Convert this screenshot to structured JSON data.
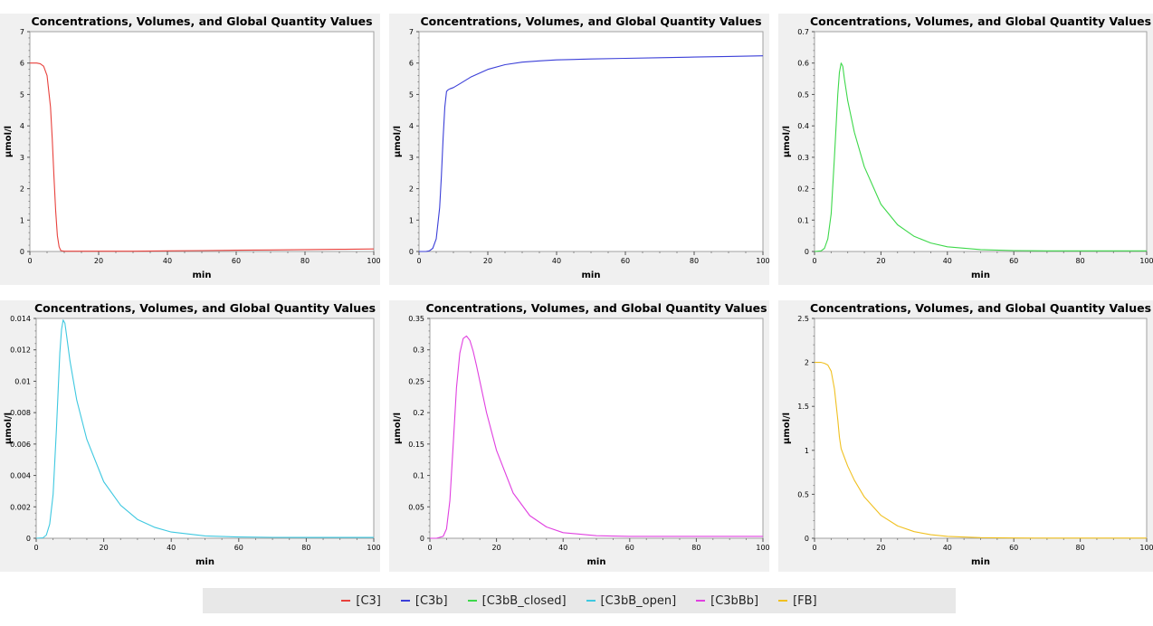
{
  "chart_data": [
    {
      "type": "line",
      "title": "Concentrations, Volumes, and Global Quantity Values",
      "xlabel": "min",
      "ylabel": "µmol/l",
      "xlim": [
        0,
        100
      ],
      "ylim": [
        0,
        7
      ],
      "xticks": [
        0,
        20,
        40,
        60,
        80,
        100
      ],
      "yticks": [
        0,
        1,
        2,
        3,
        4,
        5,
        6,
        7
      ],
      "ytick_labels": [
        "0",
        "1",
        "2",
        "3",
        "4",
        "5",
        "6",
        "7"
      ],
      "series": [
        {
          "name": "[C3]",
          "color": "#e8413c",
          "x": [
            0,
            2,
            3,
            4,
            5,
            6,
            6.5,
            7,
            7.5,
            8,
            8.5,
            9,
            10,
            15,
            20,
            30,
            40,
            50,
            60,
            70,
            80,
            90,
            100
          ],
          "y": [
            6.0,
            6.0,
            5.98,
            5.9,
            5.6,
            4.6,
            3.6,
            2.4,
            1.3,
            0.5,
            0.15,
            0.03,
            0.01,
            0.01,
            0.01,
            0.01,
            0.02,
            0.03,
            0.04,
            0.05,
            0.06,
            0.07,
            0.08
          ]
        }
      ]
    },
    {
      "type": "line",
      "title": "Concentrations, Volumes, and Global Quantity Values",
      "xlabel": "min",
      "ylabel": "µmol/l",
      "xlim": [
        0,
        100
      ],
      "ylim": [
        0,
        7
      ],
      "xticks": [
        0,
        20,
        40,
        60,
        80,
        100
      ],
      "yticks": [
        0,
        1,
        2,
        3,
        4,
        5,
        6,
        7
      ],
      "ytick_labels": [
        "0",
        "1",
        "2",
        "3",
        "4",
        "5",
        "6",
        "7"
      ],
      "series": [
        {
          "name": "[C3b]",
          "color": "#3b3fd8",
          "x": [
            0,
            2,
            3,
            4,
            5,
            6,
            6.5,
            7,
            7.5,
            8,
            8.5,
            9,
            10,
            12,
            15,
            20,
            25,
            30,
            35,
            40,
            50,
            60,
            70,
            80,
            90,
            100
          ],
          "y": [
            0,
            0,
            0.02,
            0.1,
            0.4,
            1.4,
            2.4,
            3.6,
            4.6,
            5.1,
            5.15,
            5.18,
            5.22,
            5.35,
            5.55,
            5.8,
            5.95,
            6.03,
            6.07,
            6.1,
            6.13,
            6.15,
            6.17,
            6.19,
            6.21,
            6.23
          ]
        }
      ]
    },
    {
      "type": "line",
      "title": "Concentrations, Volumes, and Global Quantity Values",
      "xlabel": "min",
      "ylabel": "µmol/l",
      "xlim": [
        0,
        100
      ],
      "ylim": [
        0,
        0.7
      ],
      "xticks": [
        0,
        20,
        40,
        60,
        80,
        100
      ],
      "yticks": [
        0,
        0.1,
        0.2,
        0.3,
        0.4,
        0.5,
        0.6,
        0.7
      ],
      "ytick_labels": [
        "0",
        "0.1",
        "0.2",
        "0.3",
        "0.4",
        "0.5",
        "0.6",
        "0.7"
      ],
      "series": [
        {
          "name": "[C3bB_closed]",
          "color": "#3dd84a",
          "x": [
            0,
            2,
            3,
            4,
            5,
            6,
            7,
            7.5,
            8,
            8.5,
            9,
            10,
            12,
            15,
            20,
            25,
            30,
            35,
            40,
            50,
            60,
            70,
            80,
            90,
            100
          ],
          "y": [
            0,
            0.002,
            0.01,
            0.04,
            0.12,
            0.3,
            0.5,
            0.57,
            0.6,
            0.59,
            0.55,
            0.48,
            0.38,
            0.27,
            0.15,
            0.085,
            0.048,
            0.027,
            0.015,
            0.006,
            0.003,
            0.002,
            0.002,
            0.002,
            0.002
          ]
        }
      ]
    },
    {
      "type": "line",
      "title": "Concentrations, Volumes, and Global Quantity Values",
      "xlabel": "min",
      "ylabel": "µmol/l",
      "xlim": [
        0,
        100
      ],
      "ylim": [
        0,
        0.014
      ],
      "xticks": [
        0,
        20,
        40,
        60,
        80,
        100
      ],
      "yticks": [
        0,
        0.002,
        0.004,
        0.006,
        0.008,
        0.01,
        0.012,
        0.014
      ],
      "ytick_labels": [
        "0",
        "0.002",
        "0.004",
        "0.006",
        "0.008",
        "0.01",
        "0.012",
        "0.014"
      ],
      "series": [
        {
          "name": "[C3bB_open]",
          "color": "#3ec8e0",
          "x": [
            0,
            2,
            3,
            4,
            5,
            6,
            7,
            7.5,
            8,
            8.5,
            9,
            10,
            12,
            15,
            20,
            25,
            30,
            35,
            40,
            50,
            60,
            70,
            80,
            90,
            100
          ],
          "y": [
            0,
            3e-05,
            0.0002,
            0.0009,
            0.0028,
            0.007,
            0.0118,
            0.0133,
            0.0139,
            0.0137,
            0.0129,
            0.0113,
            0.0088,
            0.0063,
            0.0036,
            0.0021,
            0.0012,
            0.0007,
            0.0004,
            0.00015,
            8e-05,
            6e-05,
            5e-05,
            5e-05,
            5e-05
          ]
        }
      ]
    },
    {
      "type": "line",
      "title": "Concentrations, Volumes, and Global Quantity Values",
      "xlabel": "min",
      "ylabel": "µmol/l",
      "xlim": [
        0,
        100
      ],
      "ylim": [
        0,
        0.35
      ],
      "xticks": [
        0,
        20,
        40,
        60,
        80,
        100
      ],
      "yticks": [
        0,
        0.05,
        0.1,
        0.15,
        0.2,
        0.25,
        0.3,
        0.35
      ],
      "ytick_labels": [
        "0",
        "0.05",
        "0.1",
        "0.15",
        "0.2",
        "0.25",
        "0.3",
        "0.35"
      ],
      "series": [
        {
          "name": "[C3bBb]",
          "color": "#e040e0",
          "x": [
            0,
            2,
            4,
            5,
            6,
            7,
            8,
            9,
            10,
            11,
            12,
            13,
            14,
            15,
            17,
            20,
            25,
            30,
            35,
            40,
            50,
            60,
            70,
            80,
            90,
            100
          ],
          "y": [
            0,
            0,
            0.003,
            0.015,
            0.06,
            0.15,
            0.24,
            0.295,
            0.318,
            0.322,
            0.315,
            0.298,
            0.275,
            0.25,
            0.2,
            0.14,
            0.072,
            0.036,
            0.018,
            0.009,
            0.004,
            0.003,
            0.003,
            0.003,
            0.003,
            0.003
          ]
        }
      ]
    },
    {
      "type": "line",
      "title": "Concentrations, Volumes, and Global Quantity Values",
      "xlabel": "min",
      "ylabel": "µmol/l",
      "xlim": [
        0,
        100
      ],
      "ylim": [
        0,
        2.5
      ],
      "xticks": [
        0,
        20,
        40,
        60,
        80,
        100
      ],
      "yticks": [
        0,
        0.5,
        1,
        1.5,
        2,
        2.5
      ],
      "ytick_labels": [
        "0",
        "0.5",
        "1",
        "1.5",
        "2",
        "2.5"
      ],
      "series": [
        {
          "name": "[FB]",
          "color": "#f0c020",
          "x": [
            0,
            2,
            3,
            4,
            5,
            6,
            7,
            7.5,
            8,
            9,
            10,
            12,
            15,
            20,
            25,
            30,
            35,
            40,
            50,
            60,
            70,
            80,
            90,
            100
          ],
          "y": [
            2.0,
            2.0,
            1.99,
            1.97,
            1.9,
            1.7,
            1.35,
            1.15,
            1.02,
            0.92,
            0.82,
            0.66,
            0.47,
            0.26,
            0.14,
            0.075,
            0.04,
            0.022,
            0.007,
            0.003,
            0.002,
            0.002,
            0.002,
            0.002
          ]
        }
      ]
    }
  ],
  "legend": [
    {
      "label": "[C3]",
      "color": "#e8413c"
    },
    {
      "label": "[C3b]",
      "color": "#3b3fd8"
    },
    {
      "label": "[C3bB_closed]",
      "color": "#3dd84a"
    },
    {
      "label": "[C3bB_open]",
      "color": "#3ec8e0"
    },
    {
      "label": "[C3bBb]",
      "color": "#e040e0"
    },
    {
      "label": "[FB]",
      "color": "#f0c020"
    }
  ]
}
